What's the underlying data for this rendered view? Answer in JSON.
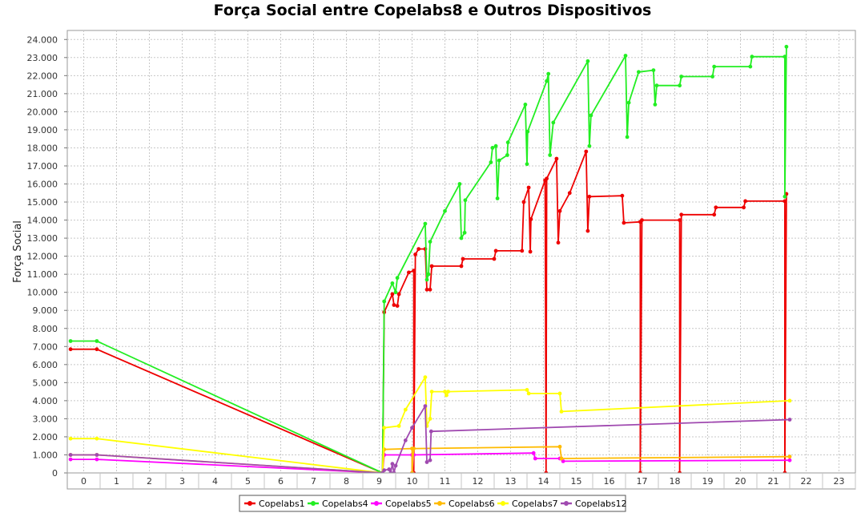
{
  "chart_data": {
    "type": "line",
    "title": "Força Social entre Copelabs8 e Outros Dispositivos",
    "xlabel": "",
    "ylabel": "Força Social",
    "xlim": [
      -0.5,
      23.5
    ],
    "ylim": [
      0,
      24500
    ],
    "x_ticks": [
      "0",
      "1",
      "2",
      "3",
      "4",
      "5",
      "6",
      "7",
      "8",
      "9",
      "10",
      "11",
      "12",
      "13",
      "14",
      "15",
      "16",
      "17",
      "18",
      "19",
      "20",
      "21",
      "22",
      "23"
    ],
    "y_ticks": [
      "0",
      "1.000",
      "2.000",
      "3.000",
      "4.000",
      "5.000",
      "6.000",
      "7.000",
      "8.000",
      "9.000",
      "10.000",
      "11.000",
      "12.000",
      "13.000",
      "14.000",
      "15.000",
      "16.000",
      "17.000",
      "18.000",
      "19.000",
      "20.000",
      "21.000",
      "22.000",
      "23.000",
      "24.000"
    ],
    "grid": true,
    "legend_position": "bottom",
    "series": [
      {
        "name": "Copelabs1",
        "color": "#ee0000",
        "points": [
          [
            -0.4,
            6850
          ],
          [
            0.4,
            6850
          ],
          [
            9.1,
            0
          ],
          [
            9.15,
            8900
          ],
          [
            9.4,
            9900
          ],
          [
            9.45,
            9300
          ],
          [
            9.55,
            9250
          ],
          [
            9.6,
            9900
          ],
          [
            9.9,
            11100
          ],
          [
            10.05,
            11200
          ],
          [
            10.05,
            0
          ],
          [
            10.1,
            12100
          ],
          [
            10.2,
            12400
          ],
          [
            10.4,
            12400
          ],
          [
            10.45,
            10150
          ],
          [
            10.55,
            10150
          ],
          [
            10.6,
            11450
          ],
          [
            11.5,
            11450
          ],
          [
            11.55,
            11850
          ],
          [
            12.5,
            11850
          ],
          [
            12.55,
            12300
          ],
          [
            13.35,
            12300
          ],
          [
            13.4,
            15000
          ],
          [
            13.55,
            15800
          ],
          [
            13.6,
            12250
          ],
          [
            13.62,
            14050
          ],
          [
            14.05,
            16200
          ],
          [
            14.08,
            0
          ],
          [
            14.1,
            16300
          ],
          [
            14.4,
            17400
          ],
          [
            14.45,
            12750
          ],
          [
            14.5,
            14500
          ],
          [
            14.8,
            15500
          ],
          [
            15.3,
            17800
          ],
          [
            15.35,
            13400
          ],
          [
            15.4,
            15300
          ],
          [
            16.4,
            15350
          ],
          [
            16.45,
            13850
          ],
          [
            16.95,
            13900
          ],
          [
            16.95,
            0
          ],
          [
            17.0,
            14000
          ],
          [
            18.15,
            14000
          ],
          [
            18.15,
            0
          ],
          [
            18.2,
            14300
          ],
          [
            19.2,
            14300
          ],
          [
            19.25,
            14700
          ],
          [
            20.1,
            14700
          ],
          [
            20.15,
            15050
          ],
          [
            21.35,
            15050
          ],
          [
            21.35,
            0
          ],
          [
            21.4,
            15450
          ]
        ]
      },
      {
        "name": "Copelabs4",
        "color": "#22ee22",
        "points": [
          [
            -0.4,
            7300
          ],
          [
            0.4,
            7300
          ],
          [
            9.1,
            0
          ],
          [
            9.15,
            9500
          ],
          [
            9.4,
            10500
          ],
          [
            9.5,
            10000
          ],
          [
            9.55,
            10800
          ],
          [
            10.4,
            13800
          ],
          [
            10.45,
            10700
          ],
          [
            10.5,
            11000
          ],
          [
            10.55,
            12800
          ],
          [
            11.0,
            14500
          ],
          [
            11.45,
            16000
          ],
          [
            11.5,
            13000
          ],
          [
            11.6,
            13300
          ],
          [
            11.62,
            15100
          ],
          [
            12.4,
            17200
          ],
          [
            12.45,
            18000
          ],
          [
            12.55,
            18100
          ],
          [
            12.6,
            15200
          ],
          [
            12.65,
            17300
          ],
          [
            12.9,
            17600
          ],
          [
            12.92,
            18300
          ],
          [
            13.45,
            20400
          ],
          [
            13.5,
            17100
          ],
          [
            13.52,
            18900
          ],
          [
            14.1,
            21700
          ],
          [
            14.15,
            22100
          ],
          [
            14.2,
            17600
          ],
          [
            14.3,
            19400
          ],
          [
            15.35,
            22800
          ],
          [
            15.4,
            18100
          ],
          [
            15.45,
            19800
          ],
          [
            16.5,
            23100
          ],
          [
            16.55,
            18600
          ],
          [
            16.6,
            20500
          ],
          [
            16.9,
            22200
          ],
          [
            17.35,
            22300
          ],
          [
            17.4,
            20400
          ],
          [
            17.45,
            21450
          ],
          [
            18.15,
            21450
          ],
          [
            18.2,
            21950
          ],
          [
            19.15,
            21950
          ],
          [
            19.2,
            22500
          ],
          [
            20.3,
            22500
          ],
          [
            20.35,
            23050
          ],
          [
            21.35,
            23050
          ],
          [
            21.35,
            15300
          ],
          [
            21.4,
            23600
          ]
        ]
      },
      {
        "name": "Copelabs5",
        "color": "#ff00ff",
        "points": [
          [
            -0.4,
            750
          ],
          [
            0.4,
            750
          ],
          [
            9.1,
            0
          ],
          [
            9.15,
            1000
          ],
          [
            10.0,
            1000
          ],
          [
            10.0,
            0
          ],
          [
            10.05,
            1000
          ],
          [
            13.7,
            1100
          ],
          [
            13.75,
            800
          ],
          [
            14.5,
            800
          ],
          [
            14.6,
            650
          ],
          [
            21.5,
            700
          ]
        ]
      },
      {
        "name": "Copelabs6",
        "color": "#ffbb00",
        "points": [
          [
            -0.4,
            1000
          ],
          [
            0.4,
            1000
          ],
          [
            9.1,
            0
          ],
          [
            9.15,
            1300
          ],
          [
            10.0,
            1350
          ],
          [
            10.0,
            0
          ],
          [
            10.05,
            1350
          ],
          [
            14.5,
            1450
          ],
          [
            14.55,
            800
          ],
          [
            21.5,
            900
          ]
        ]
      },
      {
        "name": "Copelabs7",
        "color": "#ffff00",
        "points": [
          [
            -0.4,
            1900
          ],
          [
            0.4,
            1900
          ],
          [
            9.1,
            0
          ],
          [
            9.15,
            2500
          ],
          [
            9.6,
            2600
          ],
          [
            9.8,
            3500
          ],
          [
            10.4,
            5300
          ],
          [
            10.45,
            2600
          ],
          [
            10.55,
            3000
          ],
          [
            10.6,
            4500
          ],
          [
            11.0,
            4500
          ],
          [
            11.05,
            4300
          ],
          [
            11.1,
            4500
          ],
          [
            13.5,
            4600
          ],
          [
            13.55,
            4400
          ],
          [
            14.5,
            4400
          ],
          [
            14.55,
            3400
          ],
          [
            21.5,
            4000
          ]
        ]
      },
      {
        "name": "Copelabs12",
        "color": "#a04ab0",
        "points": [
          [
            -0.4,
            1000
          ],
          [
            0.4,
            1000
          ],
          [
            9.1,
            0
          ],
          [
            9.15,
            150
          ],
          [
            9.3,
            200
          ],
          [
            9.35,
            0
          ],
          [
            9.4,
            500
          ],
          [
            9.45,
            0
          ],
          [
            9.5,
            400
          ],
          [
            9.8,
            1800
          ],
          [
            10.0,
            2500
          ],
          [
            10.4,
            3700
          ],
          [
            10.45,
            600
          ],
          [
            10.55,
            700
          ],
          [
            10.58,
            2300
          ],
          [
            21.5,
            2950
          ]
        ]
      }
    ]
  }
}
